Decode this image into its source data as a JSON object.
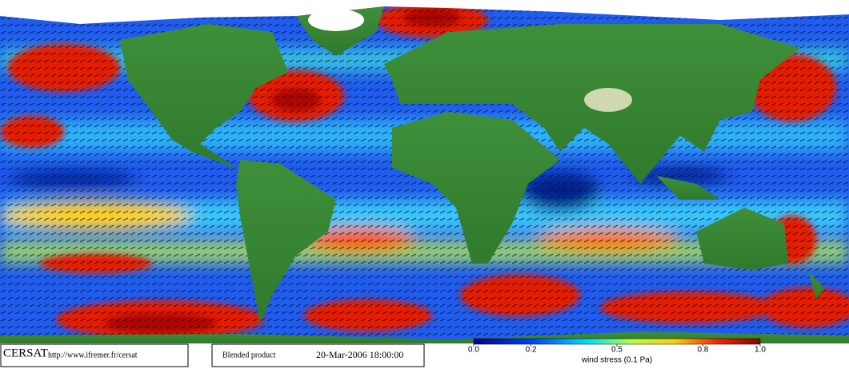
{
  "footer": {
    "logo": "CERSAT",
    "url": "http://www.ifremer.fr/cersat",
    "product": "Blended product",
    "date": "20-Mar-2006 18:00:00"
  },
  "colorbar": {
    "label": "wind stress (0.1 Pa)",
    "lim": [
      0,
      1
    ],
    "ticks": [
      {
        "value": 0,
        "label": "0.0"
      },
      0.2,
      0.5,
      0.8,
      {
        "value": 1,
        "label": "1.0"
      }
    ]
  }
}
